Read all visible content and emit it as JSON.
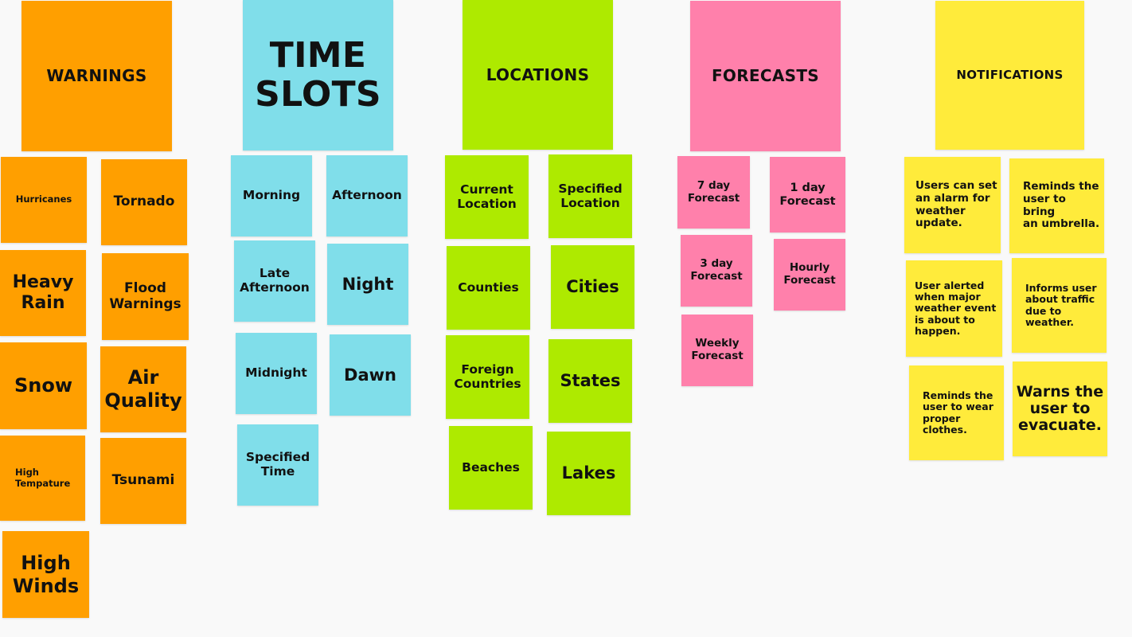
{
  "colors": {
    "background": "#f9f9f9",
    "warnings": "#ff9f00",
    "time_slots": "#80deea",
    "locations": "#aeea00",
    "forecasts": "#ff80ab",
    "notifications": "#ffeb3b"
  },
  "warnings": {
    "header": "WARNINGS",
    "items": [
      "Hurricanes",
      "Tornado",
      "Heavy\nRain",
      "Flood\nWarnings",
      "Snow",
      "Air\nQuality",
      "High\nTempature",
      "Tsunami",
      "High\nWinds"
    ]
  },
  "time_slots": {
    "header": "TIME\nSLOTS",
    "items": [
      "Morning",
      "Afternoon",
      "Late\nAfternoon",
      "Night",
      "Midnight",
      "Dawn",
      "Specified\nTime"
    ]
  },
  "locations": {
    "header": "LOCATIONS",
    "items": [
      "Current\nLocation",
      "Specified\nLocation",
      "Counties",
      "Cities",
      "Foreign\nCountries",
      "States",
      "Beaches",
      "Lakes"
    ]
  },
  "forecasts": {
    "header": "FORECASTS",
    "items": [
      "7 day\nForecast",
      "1 day\nForecast",
      "3 day\nForecast",
      "Hourly\nForecast",
      "Weekly\nForecast"
    ]
  },
  "notifications": {
    "header": "NOTIFICATIONS",
    "items": [
      "Users can set\nan alarm for\nweather\nupdate.",
      "Reminds the\nuser to bring\nan umbrella.",
      "User alerted\nwhen major\nweather event\nis about to\nhappen.",
      "Informs user\nabout traffic\ndue to\nweather.",
      "Reminds the\nuser to wear\nproper\nclothes.",
      "Warns the\nuser to\nevacuate."
    ]
  }
}
